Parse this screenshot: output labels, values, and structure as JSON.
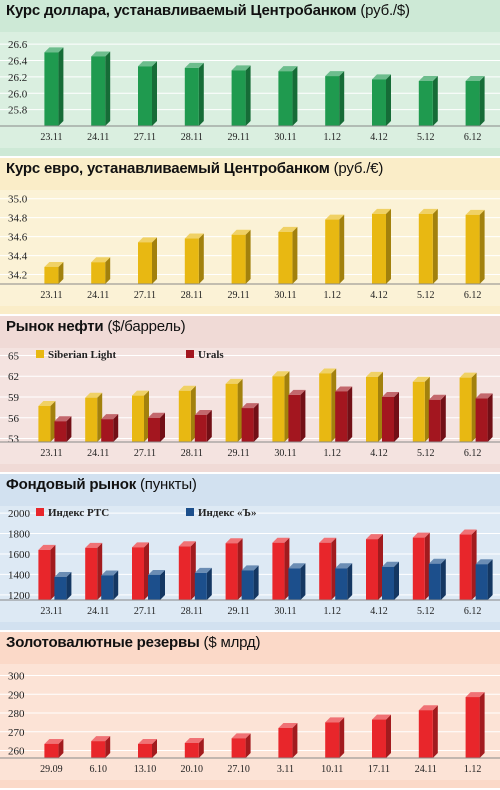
{
  "chart_data": [
    {
      "type": "bar",
      "title": "Курс доллара, устанавливаемый Центробанком",
      "unit": "(руб./$)",
      "categories": [
        "23.11",
        "24.11",
        "27.11",
        "28.11",
        "29.11",
        "30.11",
        "1.12",
        "4.12",
        "5.12",
        "6.12"
      ],
      "ylim": [
        25.6,
        26.7
      ],
      "yticks": [
        "26.6",
        "26.4",
        "26.2",
        "26.0",
        "25.8"
      ],
      "series": [
        {
          "values": [
            26.5,
            26.45,
            26.33,
            26.31,
            26.28,
            26.27,
            26.21,
            26.17,
            26.15,
            26.15
          ],
          "color": "#1f9a4f"
        }
      ],
      "background": "#cde9d6",
      "grid": true
    },
    {
      "type": "bar",
      "title": "Курс евро, устанавливаемый Центробанком",
      "unit": "(руб./€)",
      "categories": [
        "23.11",
        "24.11",
        "27.11",
        "28.11",
        "29.11",
        "30.11",
        "1.12",
        "4.12",
        "5.12",
        "6.12"
      ],
      "ylim": [
        34.1,
        35.05
      ],
      "yticks": [
        "35.0",
        "34.8",
        "34.6",
        "34.4",
        "34.2"
      ],
      "series": [
        {
          "values": [
            34.28,
            34.33,
            34.54,
            34.58,
            34.62,
            34.65,
            34.78,
            34.84,
            34.84,
            34.83
          ],
          "color": "#e8b812"
        }
      ],
      "background": "#faedc8",
      "grid": true
    },
    {
      "type": "bar",
      "title": "Рынок нефти",
      "unit": "($/баррель)",
      "categories": [
        "23.11",
        "24.11",
        "27.11",
        "28.11",
        "29.11",
        "30.11",
        "1.12",
        "4.12",
        "5.12",
        "6.12"
      ],
      "ylim": [
        52.5,
        65.5
      ],
      "yticks": [
        "65",
        "62",
        "59",
        "56",
        "53"
      ],
      "series": [
        {
          "name": "Siberian Light",
          "values": [
            57.7,
            58.9,
            59.2,
            59.9,
            60.9,
            62.0,
            62.4,
            61.9,
            61.2,
            61.8
          ],
          "color": "#e8b812"
        },
        {
          "name": "Urals",
          "values": [
            55.5,
            55.8,
            56.0,
            56.4,
            57.4,
            59.3,
            59.8,
            59.0,
            58.6,
            58.8
          ],
          "color": "#a3161f"
        }
      ],
      "background": "#f0dad6",
      "grid": true
    },
    {
      "type": "bar",
      "title": "Фондовый рынок",
      "unit": "(пункты)",
      "categories": [
        "23.11",
        "24.11",
        "27.11",
        "28.11",
        "29.11",
        "30.11",
        "1.12",
        "4.12",
        "5.12",
        "6.12"
      ],
      "ylim": [
        1150,
        2030
      ],
      "yticks": [
        "2000",
        "1800",
        "1600",
        "1400",
        "1200"
      ],
      "series": [
        {
          "name": "Индекс РТС",
          "values": [
            1640,
            1660,
            1665,
            1675,
            1705,
            1710,
            1710,
            1745,
            1760,
            1790
          ],
          "color": "#e8262b"
        },
        {
          "name": "Индекс «Ъ»",
          "values": [
            1375,
            1390,
            1395,
            1415,
            1440,
            1460,
            1460,
            1475,
            1505,
            1500
          ],
          "color": "#1c4f8c"
        }
      ],
      "background": "#d2e1f0",
      "grid": true
    },
    {
      "type": "bar",
      "title": "Золотовалютные резервы",
      "unit": "($ млрд)",
      "categories": [
        "29.09",
        "6.10",
        "13.10",
        "20.10",
        "27.10",
        "3.11",
        "10.11",
        "17.11",
        "24.11",
        "1.12"
      ],
      "ylim": [
        256,
        304
      ],
      "yticks": [
        "300",
        "290",
        "280",
        "270",
        "260"
      ],
      "series": [
        {
          "values": [
            263.5,
            265.0,
            263.5,
            264.0,
            266.5,
            272.0,
            275.0,
            276.5,
            281.5,
            288.5
          ],
          "color": "#e8262b"
        }
      ],
      "background": "#fbd9c8",
      "grid": true
    }
  ]
}
